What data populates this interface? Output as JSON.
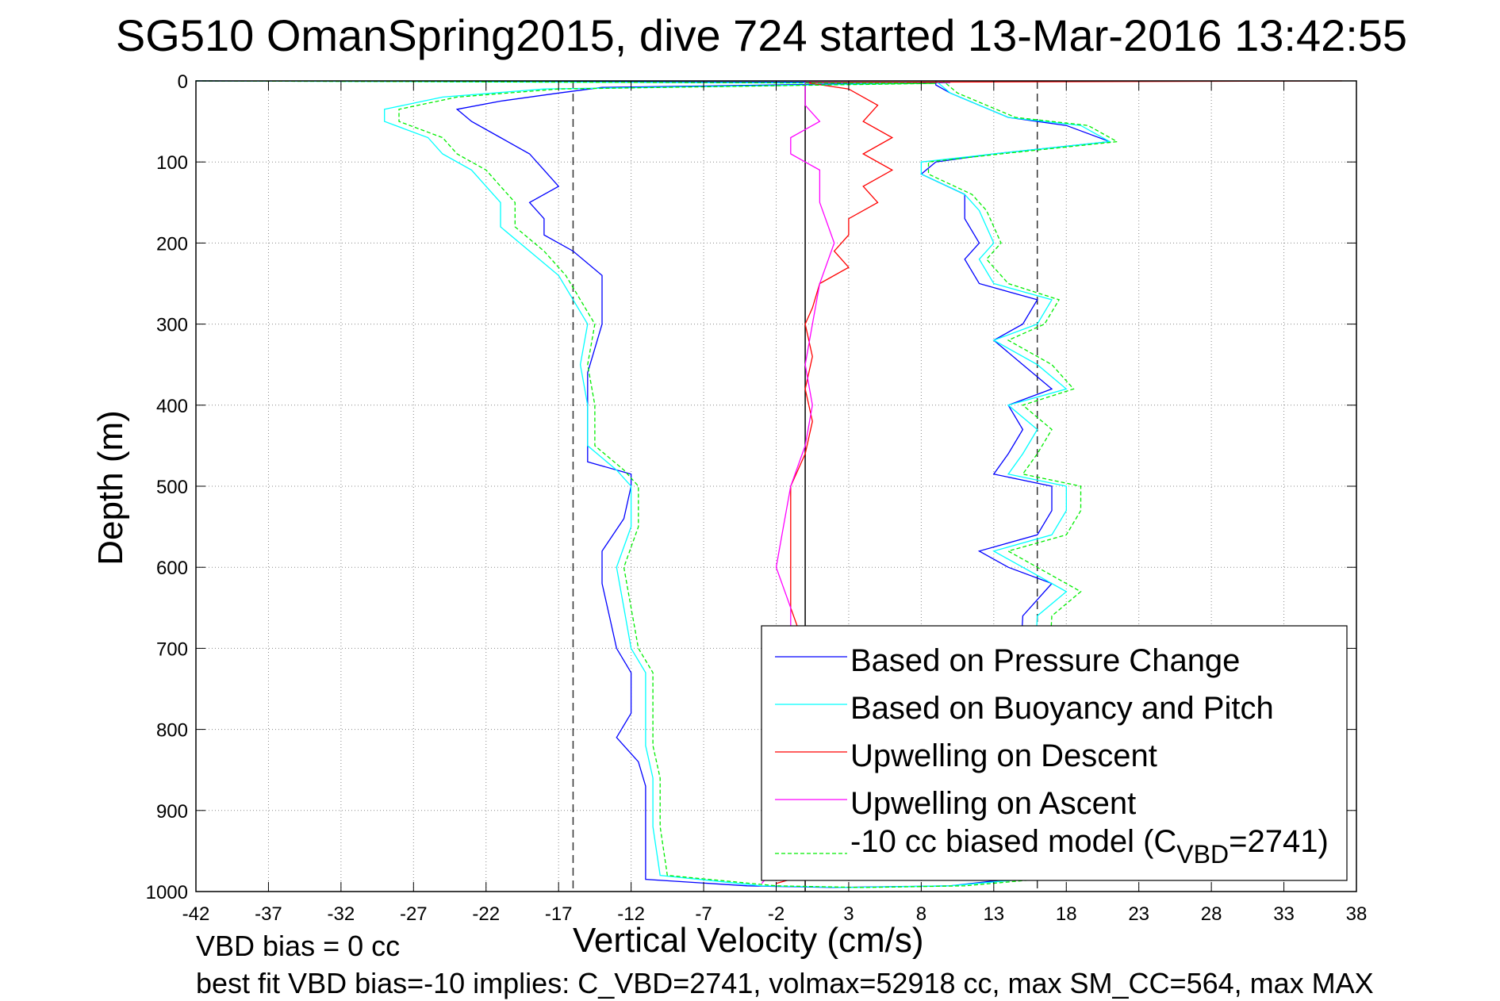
{
  "chart_data": {
    "type": "line",
    "title": "SG510 OmanSpring2015, dive 724 started 13-Mar-2016 13:42:55",
    "xlabel": "Vertical Velocity (cm/s)",
    "ylabel": "Depth (m)",
    "xlim": [
      -42,
      38
    ],
    "ylim": [
      0,
      1000
    ],
    "y_reversed": true,
    "grid": true,
    "xticks": [
      "-42",
      "-37",
      "-32",
      "-27",
      "-22",
      "-17",
      "-12",
      "-7",
      "-2",
      "3",
      "8",
      "13",
      "18",
      "23",
      "28",
      "33",
      "38"
    ],
    "yticks": [
      "0",
      "100",
      "200",
      "300",
      "400",
      "500",
      "600",
      "700",
      "800",
      "900",
      "1000"
    ],
    "reference_lines": {
      "solid_x": 0,
      "dashed_x": [
        -16,
        16
      ]
    },
    "legend_placement": "bottom-right",
    "legend": [
      {
        "label": "Based on Pressure Change",
        "color": "#0000ff",
        "dash": false
      },
      {
        "label": "Based on Buoyancy and Pitch",
        "color": "#00ffff",
        "dash": false
      },
      {
        "label": "Upwelling on Descent",
        "color": "#ff0000",
        "dash": false
      },
      {
        "label": "Upwelling on Ascent",
        "color": "#ff00ff",
        "dash": false
      },
      {
        "label": "-10 cc biased model (C",
        "sub": "VBD",
        "tail": "=2741)",
        "color": "#00ee00",
        "dash": true
      }
    ],
    "series": [
      {
        "name": "Based on Pressure Change",
        "color": "#0000ff",
        "points_depth_velocity": [
          [
            0,
            -42
          ],
          [
            2,
            10
          ],
          [
            8,
            -14
          ],
          [
            15,
            -17
          ],
          [
            25,
            -21
          ],
          [
            35,
            -24
          ],
          [
            50,
            -23
          ],
          [
            70,
            -21
          ],
          [
            90,
            -19
          ],
          [
            110,
            -18
          ],
          [
            130,
            -17
          ],
          [
            150,
            -19
          ],
          [
            170,
            -18
          ],
          [
            190,
            -18
          ],
          [
            210,
            -16
          ],
          [
            240,
            -14
          ],
          [
            270,
            -14
          ],
          [
            300,
            -14
          ],
          [
            330,
            -14.5
          ],
          [
            360,
            -15
          ],
          [
            400,
            -15
          ],
          [
            440,
            -15
          ],
          [
            470,
            -15
          ],
          [
            485,
            -12
          ],
          [
            500,
            -12
          ],
          [
            540,
            -12.5
          ],
          [
            580,
            -14
          ],
          [
            620,
            -14
          ],
          [
            660,
            -13.5
          ],
          [
            700,
            -13
          ],
          [
            730,
            -12
          ],
          [
            780,
            -12
          ],
          [
            810,
            -13
          ],
          [
            840,
            -11.5
          ],
          [
            870,
            -11
          ],
          [
            920,
            -11
          ],
          [
            960,
            -11
          ],
          [
            985,
            -11
          ],
          [
            993,
            -4
          ],
          [
            995,
            2
          ],
          [
            993,
            10
          ],
          [
            985,
            14
          ],
          [
            660,
            15
          ],
          [
            640,
            16
          ],
          [
            620,
            17
          ],
          [
            600,
            14
          ],
          [
            580,
            12
          ],
          [
            560,
            16
          ],
          [
            530,
            17
          ],
          [
            500,
            17
          ],
          [
            485,
            13
          ],
          [
            460,
            14
          ],
          [
            430,
            15
          ],
          [
            400,
            14
          ],
          [
            380,
            17
          ],
          [
            350,
            15
          ],
          [
            320,
            13
          ],
          [
            300,
            15
          ],
          [
            270,
            16
          ],
          [
            250,
            12
          ],
          [
            220,
            11
          ],
          [
            200,
            12
          ],
          [
            170,
            11
          ],
          [
            140,
            11
          ],
          [
            115,
            8
          ],
          [
            100,
            9
          ],
          [
            90,
            13
          ],
          [
            75,
            21
          ],
          [
            55,
            18
          ],
          [
            45,
            14
          ],
          [
            30,
            12
          ],
          [
            15,
            10
          ],
          [
            5,
            9
          ],
          [
            0,
            9
          ]
        ]
      },
      {
        "name": "Based on Buoyancy and Pitch",
        "color": "#00ffff",
        "points_depth_velocity": [
          [
            0,
            -42
          ],
          [
            3,
            8
          ],
          [
            10,
            -18
          ],
          [
            20,
            -25
          ],
          [
            35,
            -29
          ],
          [
            50,
            -29
          ],
          [
            70,
            -26
          ],
          [
            90,
            -25
          ],
          [
            110,
            -23
          ],
          [
            130,
            -22
          ],
          [
            150,
            -21
          ],
          [
            180,
            -21
          ],
          [
            210,
            -19
          ],
          [
            240,
            -17
          ],
          [
            270,
            -16
          ],
          [
            300,
            -15
          ],
          [
            350,
            -15.5
          ],
          [
            400,
            -15
          ],
          [
            450,
            -15
          ],
          [
            480,
            -13
          ],
          [
            500,
            -12
          ],
          [
            550,
            -12
          ],
          [
            600,
            -13
          ],
          [
            650,
            -12.5
          ],
          [
            700,
            -12
          ],
          [
            730,
            -11
          ],
          [
            780,
            -11
          ],
          [
            820,
            -11
          ],
          [
            860,
            -10.5
          ],
          [
            920,
            -10.5
          ],
          [
            980,
            -10
          ],
          [
            993,
            -3
          ],
          [
            995,
            3
          ],
          [
            993,
            10
          ],
          [
            985,
            15
          ],
          [
            660,
            16
          ],
          [
            630,
            18
          ],
          [
            600,
            15
          ],
          [
            580,
            13
          ],
          [
            560,
            17
          ],
          [
            530,
            18
          ],
          [
            500,
            18
          ],
          [
            485,
            14
          ],
          [
            460,
            15
          ],
          [
            430,
            16
          ],
          [
            400,
            14
          ],
          [
            380,
            18
          ],
          [
            350,
            16
          ],
          [
            320,
            13
          ],
          [
            300,
            16
          ],
          [
            270,
            17
          ],
          [
            250,
            13
          ],
          [
            220,
            12
          ],
          [
            200,
            13
          ],
          [
            160,
            12
          ],
          [
            140,
            11
          ],
          [
            115,
            8
          ],
          [
            100,
            8
          ],
          [
            90,
            13
          ],
          [
            75,
            21
          ],
          [
            55,
            19
          ],
          [
            45,
            14
          ],
          [
            30,
            12
          ],
          [
            15,
            10
          ],
          [
            0,
            9
          ]
        ]
      },
      {
        "name": "Upwelling on Descent",
        "color": "#ff0000",
        "points_depth_velocity": [
          [
            0,
            37
          ],
          [
            2,
            0
          ],
          [
            10,
            3
          ],
          [
            30,
            5
          ],
          [
            50,
            4
          ],
          [
            70,
            6
          ],
          [
            90,
            4
          ],
          [
            110,
            6
          ],
          [
            130,
            4
          ],
          [
            150,
            5
          ],
          [
            170,
            3
          ],
          [
            190,
            3
          ],
          [
            210,
            2
          ],
          [
            230,
            3
          ],
          [
            250,
            1
          ],
          [
            280,
            0.5
          ],
          [
            300,
            0
          ],
          [
            340,
            0.5
          ],
          [
            380,
            0
          ],
          [
            420,
            0.5
          ],
          [
            460,
            0
          ],
          [
            500,
            -1
          ],
          [
            550,
            -1
          ],
          [
            600,
            -1
          ],
          [
            650,
            -1
          ],
          [
            700,
            0
          ],
          [
            800,
            0
          ],
          [
            900,
            0
          ],
          [
            980,
            0
          ],
          [
            990,
            -2
          ]
        ]
      },
      {
        "name": "Upwelling on Ascent",
        "color": "#ff00ff",
        "points_depth_velocity": [
          [
            990,
            -3
          ],
          [
            950,
            -1
          ],
          [
            900,
            -1
          ],
          [
            860,
            -2
          ],
          [
            800,
            -1
          ],
          [
            700,
            -1
          ],
          [
            650,
            -1
          ],
          [
            600,
            -2
          ],
          [
            550,
            -1.5
          ],
          [
            500,
            -1
          ],
          [
            450,
            0
          ],
          [
            400,
            0.5
          ],
          [
            350,
            0
          ],
          [
            300,
            0.5
          ],
          [
            250,
            1
          ],
          [
            200,
            2
          ],
          [
            150,
            1
          ],
          [
            110,
            1
          ],
          [
            90,
            -1
          ],
          [
            70,
            -1
          ],
          [
            50,
            1
          ],
          [
            30,
            0
          ],
          [
            10,
            0
          ],
          [
            0,
            0
          ]
        ]
      },
      {
        "name": "-10 cc biased model",
        "color": "#00ee00",
        "dash": true,
        "points_depth_velocity": [
          [
            0,
            -42
          ],
          [
            3,
            9
          ],
          [
            10,
            -17
          ],
          [
            20,
            -24
          ],
          [
            35,
            -28
          ],
          [
            50,
            -28
          ],
          [
            70,
            -25
          ],
          [
            90,
            -24
          ],
          [
            110,
            -22
          ],
          [
            130,
            -21
          ],
          [
            150,
            -20
          ],
          [
            180,
            -20
          ],
          [
            210,
            -18
          ],
          [
            240,
            -16.5
          ],
          [
            270,
            -15.5
          ],
          [
            300,
            -14.5
          ],
          [
            350,
            -15
          ],
          [
            400,
            -14.5
          ],
          [
            450,
            -14.5
          ],
          [
            480,
            -12.5
          ],
          [
            500,
            -11.5
          ],
          [
            550,
            -11.5
          ],
          [
            600,
            -12.5
          ],
          [
            650,
            -12
          ],
          [
            700,
            -11.5
          ],
          [
            730,
            -10.5
          ],
          [
            780,
            -10.5
          ],
          [
            820,
            -10.5
          ],
          [
            860,
            -10
          ],
          [
            920,
            -10
          ],
          [
            980,
            -9.5
          ],
          [
            993,
            -2
          ],
          [
            995,
            4
          ],
          [
            993,
            11
          ],
          [
            985,
            16
          ],
          [
            660,
            17
          ],
          [
            630,
            19
          ],
          [
            600,
            16
          ],
          [
            580,
            14
          ],
          [
            560,
            18
          ],
          [
            530,
            19
          ],
          [
            500,
            19
          ],
          [
            485,
            15
          ],
          [
            460,
            16
          ],
          [
            430,
            17
          ],
          [
            400,
            15
          ],
          [
            380,
            18.5
          ],
          [
            350,
            17
          ],
          [
            320,
            14
          ],
          [
            300,
            16.5
          ],
          [
            270,
            17.5
          ],
          [
            250,
            14
          ],
          [
            220,
            12.5
          ],
          [
            200,
            13.5
          ],
          [
            160,
            12.5
          ],
          [
            140,
            11.5
          ],
          [
            115,
            8.5
          ],
          [
            100,
            8.5
          ],
          [
            90,
            13.5
          ],
          [
            75,
            21.5
          ],
          [
            55,
            19.5
          ],
          [
            45,
            14.5
          ],
          [
            30,
            12.5
          ],
          [
            15,
            10.5
          ],
          [
            0,
            9.5
          ]
        ]
      }
    ]
  },
  "annotations": {
    "vbd_bias": "VBD bias = 0 cc",
    "best_fit": "best fit VBD bias=-10 implies: C_VBD=2741, volmax=52918 cc, max SM_CC=564, max MAX"
  }
}
